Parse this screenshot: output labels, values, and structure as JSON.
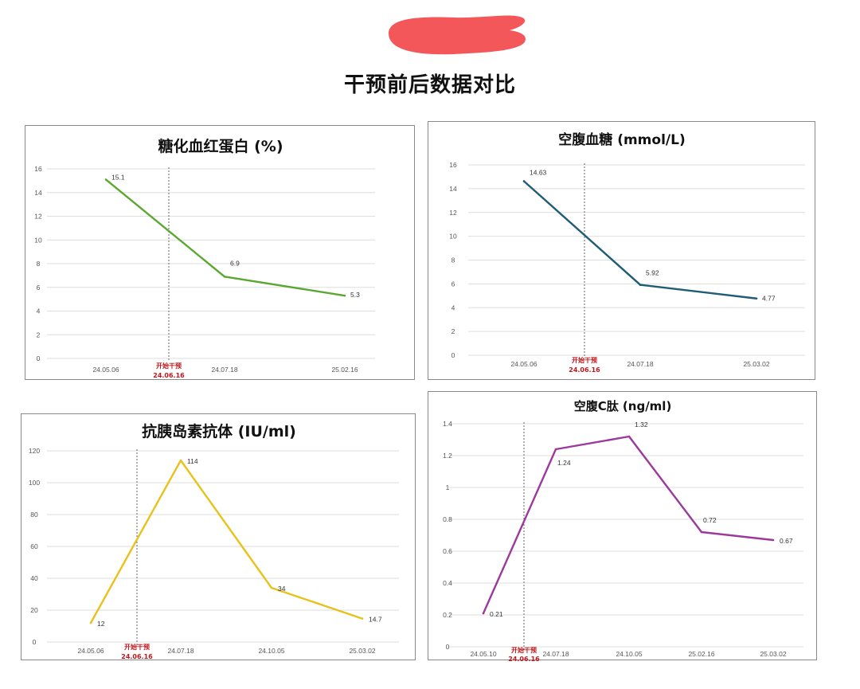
{
  "page": {
    "title": "干预前后数据对比",
    "colors": {
      "redaction": "#f4575a",
      "marker_text": "#c0161a"
    }
  },
  "chart_data": [
    {
      "type": "line",
      "title": "糖化血红蛋白 (%)",
      "categories": [
        "24.05.06",
        "24.07.18",
        "25.02.16"
      ],
      "series": [
        {
          "values": [
            15.1,
            6.9,
            5.3
          ],
          "color": "#5aa832"
        }
      ],
      "data_labels": [
        "15.1",
        "6.9",
        "5.3"
      ],
      "y_ticks": [
        "0",
        "2",
        "4",
        "6",
        "8",
        "10",
        "12",
        "14",
        "16"
      ],
      "ylim": [
        0,
        16
      ],
      "grid": true,
      "marker": {
        "line1": "开始干预",
        "line2": "24.06.16"
      }
    },
    {
      "type": "line",
      "title": "空腹血糖 (mmol/L)",
      "categories": [
        "24.05.06",
        "24.07.18",
        "25.03.02"
      ],
      "series": [
        {
          "values": [
            14.63,
            5.92,
            4.77
          ],
          "color": "#1f5c75"
        }
      ],
      "data_labels": [
        "14.63",
        "5.92",
        "4.77"
      ],
      "y_ticks": [
        "0",
        "2",
        "4",
        "6",
        "8",
        "10",
        "12",
        "14",
        "16"
      ],
      "ylim": [
        0,
        16
      ],
      "grid": true,
      "marker": {
        "line1": "开始干预",
        "line2": "24.06.16"
      }
    },
    {
      "type": "line",
      "title": "抗胰岛素抗体 (IU/ml)",
      "categories": [
        "24.05.06",
        "24.07.18",
        "24.10.05",
        "25.03.02"
      ],
      "series": [
        {
          "values": [
            12,
            114,
            34,
            14.7
          ],
          "color": "#e8c21b"
        }
      ],
      "data_labels": [
        "12",
        "114",
        "34",
        "14.7"
      ],
      "y_ticks": [
        "0",
        "20",
        "40",
        "60",
        "80",
        "100",
        "120"
      ],
      "ylim": [
        0,
        120
      ],
      "grid": true,
      "marker": {
        "line1": "开始干预",
        "line2": "24.06.16"
      }
    },
    {
      "type": "line",
      "title": "空腹C肽 (ng/ml)",
      "categories": [
        "24.05.10",
        "24.07.18",
        "24.10.05",
        "25.02.16",
        "25.03.02"
      ],
      "series": [
        {
          "values": [
            0.21,
            1.24,
            1.32,
            0.72,
            0.67
          ],
          "color": "#9b3a9c"
        }
      ],
      "data_labels": [
        "0.21",
        "1.24",
        "1.32",
        "0.72",
        "0.67"
      ],
      "y_ticks": [
        "0",
        "0.2",
        "0.4",
        "0.6",
        "0.8",
        "1",
        "1.2",
        "1.4"
      ],
      "ylim": [
        0,
        1.4
      ],
      "grid": true,
      "marker": {
        "line1": "开始干预",
        "line2": "24.06.16"
      }
    }
  ]
}
